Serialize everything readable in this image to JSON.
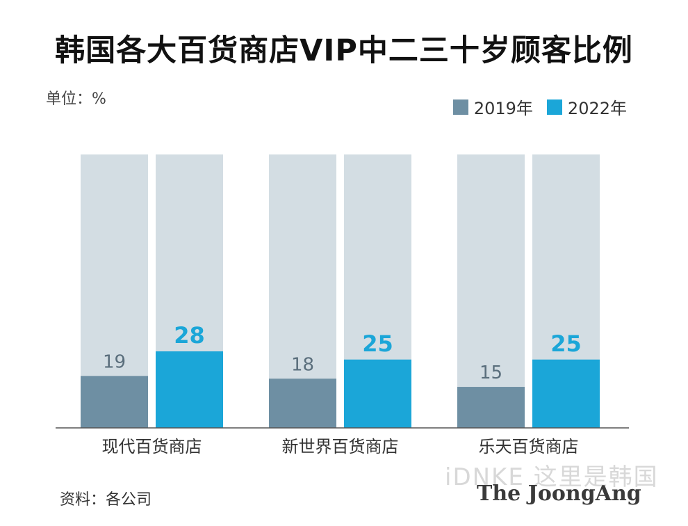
{
  "title": "韩国各大百货商店VIP中二三十岁顾客比例",
  "unit_label": "单位：%",
  "source_label": "资料：各公司",
  "brand": "The JoongAng",
  "watermark": "iDNKE 这里是韩国",
  "colors": {
    "series_2019": "#6e8fa3",
    "series_2022": "#1ba6d8",
    "track": "#d3dde3",
    "value_2019": "#5a6e7c",
    "value_2022": "#1ba6d8"
  },
  "chart_data": {
    "type": "bar",
    "categories": [
      "现代百货商店",
      "新世界百货商店",
      "乐天百货商店"
    ],
    "series": [
      {
        "name": "2019年",
        "values": [
          19,
          18,
          15
        ]
      },
      {
        "name": "2022年",
        "values": [
          28,
          25,
          25
        ]
      }
    ],
    "ylim": [
      0,
      100
    ],
    "grid": false,
    "legend_position": "top-right",
    "background_track": true
  }
}
